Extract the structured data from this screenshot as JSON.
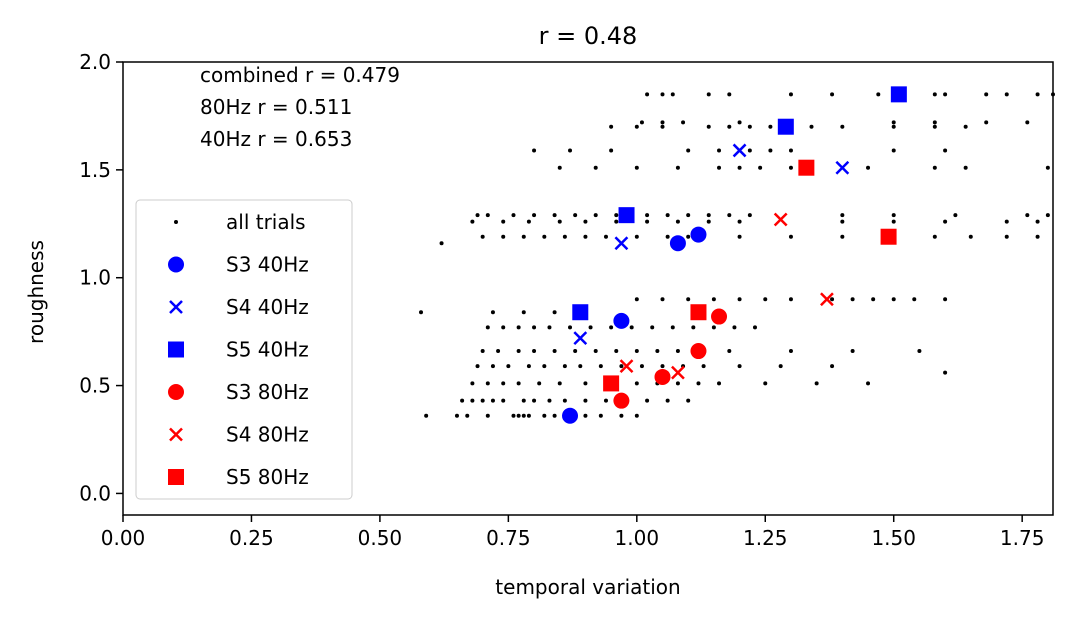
{
  "chart_data": {
    "type": "scatter",
    "title": "r = 0.48",
    "xlabel": "temporal variation",
    "ylabel": "roughness",
    "xlim": [
      0.0,
      1.81
    ],
    "ylim": [
      -0.1,
      2.0
    ],
    "xticks": [
      "0.00",
      "0.25",
      "0.50",
      "0.75",
      "1.00",
      "1.25",
      "1.50",
      "1.75"
    ],
    "yticks": [
      "0.0",
      "0.5",
      "1.0",
      "1.5",
      "2.0"
    ],
    "grid": false,
    "legend_position": "lower-left",
    "annotations": [
      "combined r = 0.479",
      "80Hz r = 0.511",
      "40Hz r = 0.653"
    ],
    "series": [
      {
        "name": "all trials",
        "marker": "dot",
        "color": "#000000",
        "x": [
          0.59,
          0.65,
          0.67,
          0.71,
          0.76,
          0.77,
          0.78,
          0.79,
          0.82,
          0.84,
          0.86,
          0.88,
          0.9,
          0.93,
          0.97,
          1.0,
          0.66,
          0.68,
          0.7,
          0.72,
          0.74,
          0.78,
          0.8,
          0.83,
          0.86,
          0.9,
          0.94,
          0.98,
          1.02,
          1.06,
          1.1,
          0.68,
          0.71,
          0.74,
          0.77,
          0.81,
          0.85,
          0.9,
          0.95,
          1.0,
          1.04,
          1.08,
          1.12,
          1.16,
          1.25,
          1.35,
          1.45,
          1.6,
          0.69,
          0.72,
          0.75,
          0.79,
          0.82,
          0.86,
          0.89,
          0.93,
          0.97,
          1.01,
          1.05,
          1.09,
          1.13,
          1.2,
          1.28,
          1.38,
          0.7,
          0.73,
          0.77,
          0.8,
          0.84,
          0.88,
          0.92,
          0.96,
          1.0,
          1.04,
          1.08,
          1.12,
          1.18,
          1.3,
          1.42,
          1.55,
          0.58,
          0.71,
          0.74,
          0.77,
          0.8,
          0.83,
          0.87,
          0.91,
          0.95,
          0.99,
          1.03,
          1.07,
          1.11,
          1.15,
          1.19,
          1.23,
          0.72,
          0.78,
          0.84,
          0.9,
          1.0,
          1.05,
          1.1,
          1.15,
          1.2,
          1.25,
          1.3,
          1.38,
          1.42,
          1.46,
          1.5,
          1.54,
          1.6,
          0.62,
          0.7,
          0.74,
          0.78,
          0.82,
          0.86,
          0.9,
          0.94,
          1.0,
          1.06,
          1.1,
          1.2,
          1.3,
          1.4,
          1.5,
          1.58,
          1.65,
          1.72,
          1.78,
          0.69,
          0.71,
          0.76,
          0.8,
          0.84,
          0.88,
          0.92,
          0.96,
          1.02,
          1.06,
          1.1,
          1.14,
          1.18,
          1.22,
          1.4,
          1.5,
          1.62,
          1.76,
          1.8,
          0.68,
          0.74,
          0.79,
          0.85,
          0.9,
          0.96,
          1.02,
          1.08,
          1.14,
          1.2,
          1.4,
          1.5,
          1.6,
          1.72,
          1.78,
          0.85,
          0.92,
          1.0,
          1.08,
          1.16,
          1.2,
          1.24,
          1.3,
          1.34,
          1.45,
          1.58,
          1.64,
          1.8,
          0.8,
          0.87,
          0.95,
          1.1,
          1.16,
          1.22,
          1.26,
          1.3,
          1.5,
          1.6,
          0.95,
          1.0,
          1.05,
          1.14,
          1.18,
          1.22,
          1.26,
          1.3,
          1.34,
          1.4,
          1.5,
          1.58,
          1.64,
          1.01,
          1.05,
          1.09,
          1.2,
          1.3,
          1.5,
          1.58,
          1.68,
          1.76,
          1.02,
          1.05,
          1.07,
          1.14,
          1.18,
          1.3,
          1.38,
          1.47,
          1.58,
          1.6,
          1.68,
          1.72,
          1.78,
          1.81
        ],
        "y": [
          0.36,
          0.36,
          0.36,
          0.36,
          0.36,
          0.36,
          0.36,
          0.36,
          0.36,
          0.36,
          0.36,
          0.36,
          0.36,
          0.36,
          0.36,
          0.36,
          0.43,
          0.43,
          0.43,
          0.43,
          0.43,
          0.43,
          0.43,
          0.43,
          0.43,
          0.43,
          0.43,
          0.43,
          0.43,
          0.43,
          0.43,
          0.51,
          0.51,
          0.51,
          0.51,
          0.51,
          0.51,
          0.51,
          0.51,
          0.51,
          0.51,
          0.51,
          0.51,
          0.51,
          0.51,
          0.51,
          0.51,
          0.56,
          0.59,
          0.59,
          0.59,
          0.59,
          0.59,
          0.59,
          0.59,
          0.59,
          0.59,
          0.59,
          0.59,
          0.59,
          0.59,
          0.59,
          0.59,
          0.59,
          0.66,
          0.66,
          0.66,
          0.66,
          0.66,
          0.66,
          0.66,
          0.66,
          0.66,
          0.66,
          0.66,
          0.66,
          0.66,
          0.66,
          0.66,
          0.66,
          0.84,
          0.77,
          0.77,
          0.77,
          0.77,
          0.77,
          0.77,
          0.77,
          0.77,
          0.77,
          0.77,
          0.77,
          0.77,
          0.77,
          0.77,
          0.77,
          0.84,
          0.84,
          0.84,
          0.84,
          0.9,
          0.9,
          0.9,
          0.9,
          0.9,
          0.9,
          0.9,
          0.9,
          0.9,
          0.9,
          0.9,
          0.9,
          0.9,
          1.16,
          1.19,
          1.19,
          1.19,
          1.19,
          1.19,
          1.19,
          1.19,
          1.19,
          1.19,
          1.19,
          1.19,
          1.19,
          1.19,
          1.19,
          1.19,
          1.19,
          1.19,
          1.19,
          1.29,
          1.29,
          1.29,
          1.29,
          1.29,
          1.29,
          1.29,
          1.29,
          1.29,
          1.29,
          1.29,
          1.29,
          1.29,
          1.29,
          1.29,
          1.29,
          1.29,
          1.29,
          1.29,
          1.26,
          1.26,
          1.26,
          1.26,
          1.26,
          1.26,
          1.26,
          1.26,
          1.26,
          1.26,
          1.26,
          1.26,
          1.26,
          1.26,
          1.26,
          1.51,
          1.51,
          1.51,
          1.51,
          1.51,
          1.51,
          1.51,
          1.51,
          1.51,
          1.51,
          1.51,
          1.51,
          1.51,
          1.59,
          1.59,
          1.59,
          1.59,
          1.59,
          1.59,
          1.59,
          1.59,
          1.59,
          1.59,
          1.7,
          1.7,
          1.7,
          1.7,
          1.7,
          1.7,
          1.7,
          1.7,
          1.7,
          1.7,
          1.7,
          1.7,
          1.7,
          1.72,
          1.72,
          1.72,
          1.72,
          1.72,
          1.72,
          1.72,
          1.72,
          1.72,
          1.85,
          1.85,
          1.85,
          1.85,
          1.85,
          1.85,
          1.85,
          1.85,
          1.85,
          1.85,
          1.85,
          1.85,
          1.85,
          1.85
        ]
      },
      {
        "name": "S3 40Hz",
        "marker": "circle",
        "color": "#0000ff",
        "x": [
          0.87,
          0.97,
          1.08,
          1.12
        ],
        "y": [
          0.36,
          0.8,
          1.16,
          1.2
        ]
      },
      {
        "name": "S4 40Hz",
        "marker": "x",
        "color": "#0000ff",
        "x": [
          0.89,
          0.97,
          1.2,
          1.4
        ],
        "y": [
          0.72,
          1.16,
          1.59,
          1.51
        ]
      },
      {
        "name": "S5 40Hz",
        "marker": "square",
        "color": "#0000ff",
        "x": [
          0.89,
          0.98,
          1.29,
          1.51
        ],
        "y": [
          0.84,
          1.29,
          1.7,
          1.85
        ]
      },
      {
        "name": "S3 80Hz",
        "marker": "circle",
        "color": "#ff0000",
        "x": [
          0.97,
          1.05,
          1.12,
          1.16
        ],
        "y": [
          0.43,
          0.54,
          0.66,
          0.82
        ]
      },
      {
        "name": "S4 80Hz",
        "marker": "x",
        "color": "#ff0000",
        "x": [
          0.98,
          1.08,
          1.28,
          1.37
        ],
        "y": [
          0.59,
          0.56,
          1.27,
          0.9
        ]
      },
      {
        "name": "S5 80Hz",
        "marker": "square",
        "color": "#ff0000",
        "x": [
          0.95,
          1.12,
          1.33,
          1.49
        ],
        "y": [
          0.51,
          0.84,
          1.51,
          1.19
        ]
      }
    ]
  }
}
